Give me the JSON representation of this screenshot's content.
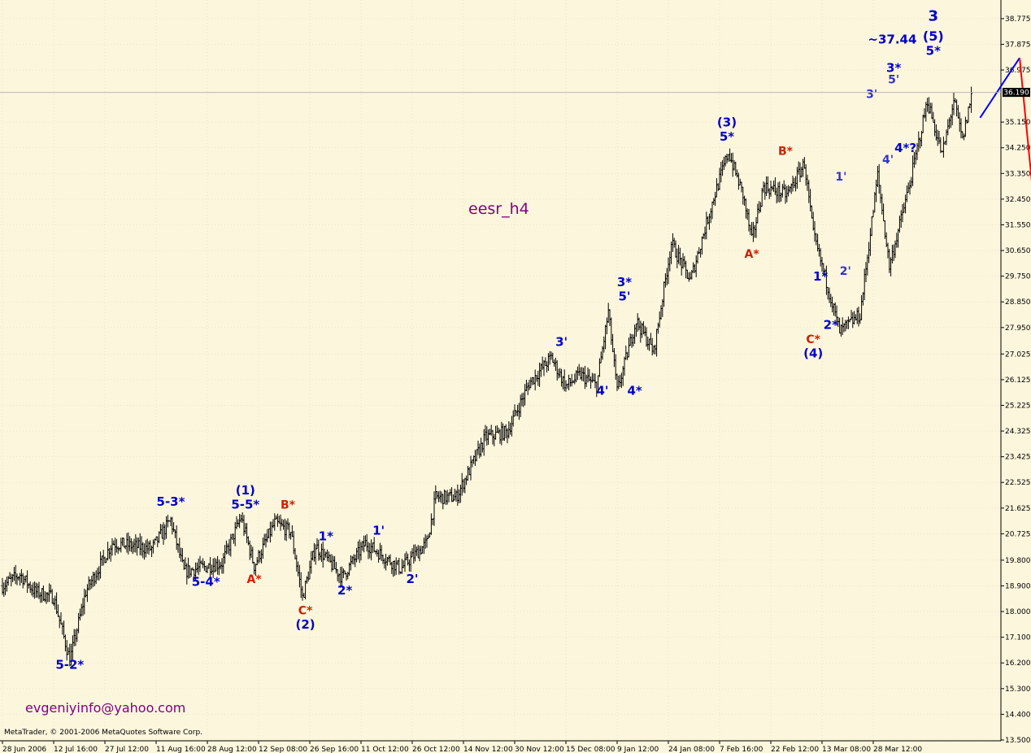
{
  "chart_data": {
    "type": "candlestick",
    "symbol_label": "eesr_h4",
    "current_price": "36.190",
    "contact": "evgeniyinfo@yahoo.com",
    "copyright": "MetaTrader, © 2001-2006 MetaQuotes Software Corp.",
    "ylim": [
      13.5,
      39.0
    ],
    "y_ticks": [
      "38.775",
      "37.875",
      "36.975",
      "35.150",
      "34.250",
      "33.350",
      "32.450",
      "31.550",
      "30.650",
      "29.750",
      "28.850",
      "27.950",
      "27.025",
      "26.125",
      "25.225",
      "24.325",
      "23.425",
      "22.525",
      "21.625",
      "20.725",
      "19.800",
      "18.900",
      "18.000",
      "17.100",
      "16.200",
      "15.300",
      "14.400",
      "13.500"
    ],
    "x_ticks": [
      "28 Jun 2006",
      "12 Jul 16:00",
      "27 Jul 12:00",
      "11 Aug 16:00",
      "28 Aug 12:00",
      "12 Sep 08:00",
      "26 Sep 16:00",
      "11 Oct 12:00",
      "26 Oct 12:00",
      "14 Nov 12:00",
      "30 Nov 12:00",
      "15 Dec 08:00",
      "9 Jan 12:00",
      "24 Jan 08:00",
      "7 Feb 16:00",
      "22 Feb 12:00",
      "13 Mar 08:00",
      "28 Mar 12:00"
    ],
    "x_tick_index": [
      0,
      35,
      70,
      105,
      140,
      175,
      210,
      245,
      280,
      315,
      350,
      385,
      420,
      455,
      490,
      525,
      560,
      595
    ],
    "total_bars": 720,
    "wave_anchors": [
      {
        "i": 0,
        "p": 18.9
      },
      {
        "i": 12,
        "p": 19.3
      },
      {
        "i": 22,
        "p": 18.7
      },
      {
        "i": 35,
        "p": 18.5
      },
      {
        "i": 46,
        "p": 16.3
      },
      {
        "i": 57,
        "p": 18.7
      },
      {
        "i": 75,
        "p": 20.4
      },
      {
        "i": 102,
        "p": 20.2
      },
      {
        "i": 115,
        "p": 21.2
      },
      {
        "i": 124,
        "p": 19.4
      },
      {
        "i": 150,
        "p": 19.7
      },
      {
        "i": 163,
        "p": 21.3
      },
      {
        "i": 172,
        "p": 19.6
      },
      {
        "i": 186,
        "p": 21.1
      },
      {
        "i": 197,
        "p": 20.8
      },
      {
        "i": 205,
        "p": 18.5
      },
      {
        "i": 214,
        "p": 20.3
      },
      {
        "i": 232,
        "p": 19.2
      },
      {
        "i": 248,
        "p": 20.4
      },
      {
        "i": 272,
        "p": 19.5
      },
      {
        "i": 290,
        "p": 20.4
      },
      {
        "i": 296,
        "p": 22.0
      },
      {
        "i": 310,
        "p": 22.0
      },
      {
        "i": 330,
        "p": 24.1
      },
      {
        "i": 345,
        "p": 24.3
      },
      {
        "i": 360,
        "p": 26.0
      },
      {
        "i": 375,
        "p": 26.9
      },
      {
        "i": 385,
        "p": 25.9
      },
      {
        "i": 395,
        "p": 26.3
      },
      {
        "i": 406,
        "p": 25.9
      },
      {
        "i": 414,
        "p": 28.5
      },
      {
        "i": 420,
        "p": 25.7
      },
      {
        "i": 433,
        "p": 28.2
      },
      {
        "i": 445,
        "p": 27.1
      },
      {
        "i": 457,
        "p": 30.9
      },
      {
        "i": 470,
        "p": 29.6
      },
      {
        "i": 486,
        "p": 32.5
      },
      {
        "i": 496,
        "p": 34.1
      },
      {
        "i": 506,
        "p": 32.6
      },
      {
        "i": 512,
        "p": 31.0
      },
      {
        "i": 520,
        "p": 32.9
      },
      {
        "i": 536,
        "p": 32.6
      },
      {
        "i": 548,
        "p": 33.7
      },
      {
        "i": 554,
        "p": 31.2
      },
      {
        "i": 566,
        "p": 29.0
      },
      {
        "i": 572,
        "p": 27.8
      },
      {
        "i": 586,
        "p": 28.4
      },
      {
        "i": 598,
        "p": 33.3
      },
      {
        "i": 606,
        "p": 30.1
      },
      {
        "i": 620,
        "p": 33.0
      },
      {
        "i": 632,
        "p": 35.9
      },
      {
        "i": 642,
        "p": 34.0
      },
      {
        "i": 650,
        "p": 35.9
      },
      {
        "i": 656,
        "p": 34.5
      },
      {
        "i": 662,
        "p": 36.1
      }
    ],
    "projection": [
      {
        "label": "blue",
        "from": {
          "i": 668,
          "p": 35.3
        },
        "to": {
          "i": 695,
          "p": 37.4
        },
        "color": "#0000ff"
      },
      {
        "label": "red",
        "from": {
          "i": 695,
          "p": 37.4
        },
        "to": {
          "i": 725,
          "p": 21.8
        },
        "color": "#ff0000"
      }
    ],
    "annotations": [
      {
        "text": "5-2*",
        "i": 46,
        "p": 16.0,
        "color": "#0000cc",
        "size": 15
      },
      {
        "text": "5-3*",
        "i": 115,
        "p": 21.7,
        "color": "#0000cc",
        "size": 15
      },
      {
        "text": "5-4*",
        "i": 139,
        "p": 18.9,
        "color": "#0000cc",
        "size": 15
      },
      {
        "text": "(1)",
        "i": 166,
        "p": 22.1,
        "color": "#0000cc",
        "size": 15
      },
      {
        "text": "5-5*",
        "i": 166,
        "p": 21.6,
        "color": "#0000cc",
        "size": 15
      },
      {
        "text": "A*",
        "i": 172,
        "p": 19.0,
        "color": "#cc2200",
        "size": 14
      },
      {
        "text": "B*",
        "i": 195,
        "p": 21.6,
        "color": "#cc2200",
        "size": 14
      },
      {
        "text": "C*",
        "i": 207,
        "p": 17.9,
        "color": "#cc2200",
        "size": 14
      },
      {
        "text": "(2)",
        "i": 207,
        "p": 17.4,
        "color": "#0000cc",
        "size": 15
      },
      {
        "text": "1*",
        "i": 221,
        "p": 20.5,
        "color": "#0000cc",
        "size": 15
      },
      {
        "text": "2*",
        "i": 234,
        "p": 18.6,
        "color": "#0000cc",
        "size": 15
      },
      {
        "text": "1'",
        "i": 257,
        "p": 20.7,
        "color": "#0000cc",
        "size": 15
      },
      {
        "text": "2'",
        "i": 280,
        "p": 19.0,
        "color": "#0000cc",
        "size": 15
      },
      {
        "text": "3'",
        "i": 382,
        "p": 27.3,
        "color": "#0000cc",
        "size": 15
      },
      {
        "text": "4'",
        "i": 410,
        "p": 25.6,
        "color": "#0000cc",
        "size": 15
      },
      {
        "text": "3*",
        "i": 425,
        "p": 29.4,
        "color": "#0000cc",
        "size": 15
      },
      {
        "text": "5'",
        "i": 425,
        "p": 28.9,
        "color": "#0000cc",
        "size": 15
      },
      {
        "text": "4*",
        "i": 432,
        "p": 25.6,
        "color": "#0000cc",
        "size": 15
      },
      {
        "text": "(3)",
        "i": 495,
        "p": 35.0,
        "color": "#0000cc",
        "size": 15
      },
      {
        "text": "5*",
        "i": 495,
        "p": 34.5,
        "color": "#0000cc",
        "size": 15
      },
      {
        "text": "A*",
        "i": 512,
        "p": 30.4,
        "color": "#cc2200",
        "size": 14
      },
      {
        "text": "B*",
        "i": 535,
        "p": 34.0,
        "color": "#cc2200",
        "size": 14
      },
      {
        "text": "1*",
        "i": 559,
        "p": 29.6,
        "color": "#0000cc",
        "size": 15
      },
      {
        "text": "2*",
        "i": 566,
        "p": 27.9,
        "color": "#0000cc",
        "size": 15
      },
      {
        "text": "C*",
        "i": 554,
        "p": 27.4,
        "color": "#cc2200",
        "size": 14
      },
      {
        "text": "(4)",
        "i": 554,
        "p": 26.9,
        "color": "#0000cc",
        "size": 15
      },
      {
        "text": "1'",
        "i": 573,
        "p": 33.1,
        "color": "#3333cc",
        "size": 14
      },
      {
        "text": "2'",
        "i": 576,
        "p": 29.8,
        "color": "#3333cc",
        "size": 14
      },
      {
        "text": "3'",
        "i": 594,
        "p": 36.0,
        "color": "#3333cc",
        "size": 14
      },
      {
        "text": "4'",
        "i": 605,
        "p": 33.7,
        "color": "#3333cc",
        "size": 14
      },
      {
        "text": "5'",
        "i": 609,
        "p": 36.5,
        "color": "#3333cc",
        "size": 14
      },
      {
        "text": "3*",
        "i": 609,
        "p": 36.9,
        "color": "#0000cc",
        "size": 15
      },
      {
        "text": "4*?",
        "i": 617,
        "p": 34.1,
        "color": "#0000cc",
        "size": 15
      },
      {
        "text": "~37.44",
        "i": 608,
        "p": 37.9,
        "color": "#0000cc",
        "size": 15
      },
      {
        "text": "3",
        "i": 636,
        "p": 38.7,
        "color": "#0000cc",
        "size": 18
      },
      {
        "text": "(5)",
        "i": 636,
        "p": 38.0,
        "color": "#0000cc",
        "size": 16
      },
      {
        "text": "5*",
        "i": 636,
        "p": 37.5,
        "color": "#0000cc",
        "size": 15
      }
    ]
  }
}
